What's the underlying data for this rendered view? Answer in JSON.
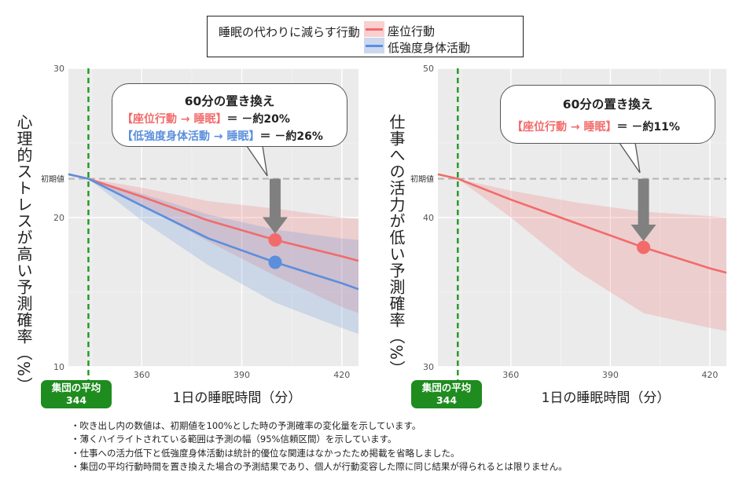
{
  "legend": {
    "title": "睡眠の代わりに減らす行動",
    "items": [
      {
        "label": "座位行動",
        "color": "#f26b6b"
      },
      {
        "label": "低強度身体活動",
        "color": "#5b8fdc"
      }
    ]
  },
  "baseline_label": "初期値",
  "group_mean_badge": {
    "line1": "集団の平均",
    "line2": "344"
  },
  "chart_data": [
    {
      "type": "line",
      "title": "",
      "xlabel": "1日の睡眠時間（分）",
      "ylabel": "心理的ストレスが高い予測確率（%）",
      "xlim": [
        338,
        425
      ],
      "ylim": [
        10,
        30
      ],
      "xticks": [
        360,
        390,
        420
      ],
      "yticks": [
        10,
        20,
        30
      ],
      "group_mean_x": 344,
      "baseline_y": 22.6,
      "series": [
        {
          "name": "座位行動",
          "color": "#f26b6b",
          "x": [
            338,
            344,
            360,
            380,
            400,
            420,
            425
          ],
          "y": [
            22.9,
            22.6,
            21.4,
            19.8,
            18.5,
            17.4,
            17.1
          ],
          "lower": [
            22.9,
            22.6,
            20.8,
            18.4,
            16.1,
            14.0,
            13.6
          ],
          "upper": [
            22.9,
            22.6,
            22.0,
            21.1,
            20.6,
            20.0,
            19.9
          ]
        },
        {
          "name": "低強度身体活動",
          "color": "#5b8fdc",
          "x": [
            338,
            344,
            360,
            380,
            400,
            420,
            425
          ],
          "y": [
            22.9,
            22.6,
            20.8,
            18.6,
            17.0,
            15.6,
            15.2
          ],
          "lower": [
            22.9,
            22.6,
            19.8,
            16.8,
            14.3,
            12.6,
            12.2
          ],
          "upper": [
            22.9,
            22.6,
            21.6,
            20.2,
            19.2,
            18.6,
            18.5
          ]
        }
      ],
      "highlight_x": 400,
      "callout": {
        "title": "60分の置き換え",
        "lines": [
          {
            "text": "【座位行動 → 睡眠】＝ －約20%",
            "color": "#f26b6b",
            "highlight": "【座位行動 → 睡眠】",
            "rest": "＝ －約20%"
          },
          {
            "text": "【低強度身体活動 → 睡眠】＝ －約26%",
            "color": "#5b8fdc",
            "highlight": "【低強度身体活動 → 睡眠】",
            "rest": "＝ －約26%"
          }
        ]
      }
    },
    {
      "type": "line",
      "title": "",
      "xlabel": "1日の睡眠時間（分）",
      "ylabel": "仕事への活力が低い予測確率（%）",
      "xlim": [
        338,
        425
      ],
      "ylim": [
        30,
        50
      ],
      "xticks": [
        360,
        390,
        420
      ],
      "yticks": [
        30,
        40,
        50
      ],
      "group_mean_x": 344,
      "baseline_y": 42.6,
      "series": [
        {
          "name": "座位行動",
          "color": "#f26b6b",
          "x": [
            338,
            344,
            360,
            380,
            400,
            420,
            425
          ],
          "y": [
            42.9,
            42.6,
            41.2,
            39.6,
            38.0,
            36.6,
            36.3
          ],
          "lower": [
            42.9,
            42.6,
            40.0,
            36.4,
            33.6,
            32.6,
            32.4
          ],
          "upper": [
            42.9,
            42.6,
            41.8,
            41.0,
            40.4,
            40.1,
            40.0
          ]
        }
      ],
      "highlight_x": 400,
      "callout": {
        "title": "60分の置き換え",
        "lines": [
          {
            "text": "【座位行動 → 睡眠】＝ －約11%",
            "color": "#f26b6b",
            "highlight": "【座位行動 → 睡眠】",
            "rest": "＝ －約11%"
          }
        ]
      }
    }
  ],
  "notes": [
    "・吹き出し内の数値は、初期値を100%とした時の予測確率の変化量を示しています。",
    "・薄くハイライトされている範囲は予測の幅（95%信頼区間）を示しています。",
    "・仕事への活力低下と低強度身体活動は統計的優位な関連はなかったため掲載を省略しました。",
    "・集団の平均行動時間を置き換えた場合の予測結果であり、個人が行動変容した際に同じ結果が得られるとは限りません。"
  ]
}
